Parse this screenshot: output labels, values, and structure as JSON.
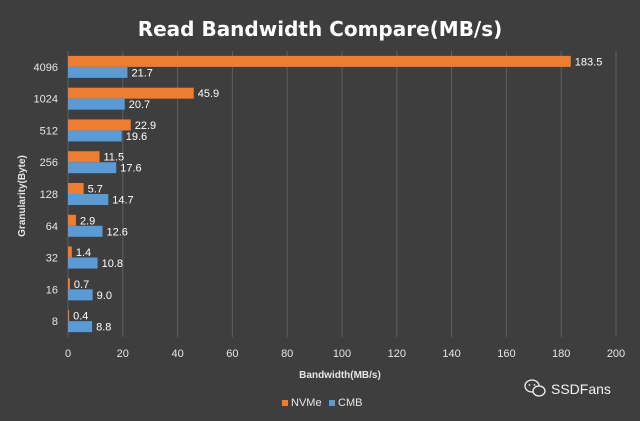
{
  "chart_data": {
    "type": "bar",
    "orientation": "horizontal",
    "title": "Read Bandwidth Compare(MB/s)",
    "xlabel": "Bandwidth(MB/s)",
    "ylabel": "Granularity(Byte)",
    "categories": [
      "4096",
      "1024",
      "512",
      "256",
      "128",
      "64",
      "32",
      "16",
      "8"
    ],
    "xlim": [
      0,
      200
    ],
    "xticks": [
      0,
      20,
      40,
      60,
      80,
      100,
      120,
      140,
      160,
      180,
      200
    ],
    "grid": true,
    "legend_position": "bottom",
    "series": [
      {
        "name": "NVMe",
        "color": "#ed7d31",
        "values": [
          183.5,
          45.9,
          22.9,
          11.5,
          5.7,
          2.9,
          1.4,
          0.7,
          0.4
        ]
      },
      {
        "name": "CMB",
        "color": "#5b9bd5",
        "values": [
          21.7,
          20.7,
          19.6,
          17.6,
          14.7,
          12.6,
          10.8,
          9.0,
          8.8
        ]
      }
    ]
  },
  "watermark": {
    "text": "SSDFans",
    "icon": "wechat-icon"
  }
}
